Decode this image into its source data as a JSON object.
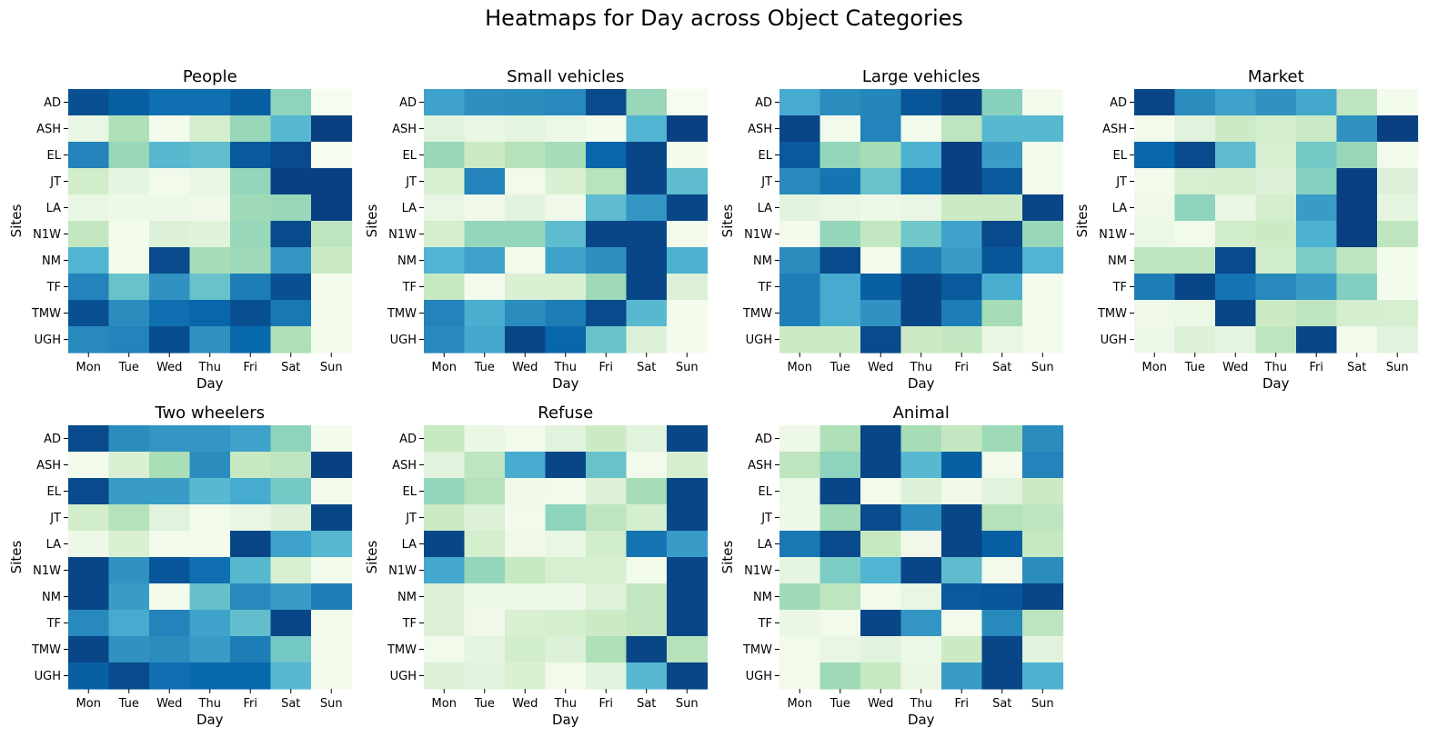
{
  "figure": {
    "title": "Heatmaps for Day across Object Categories"
  },
  "colormap": {
    "name": "GnBu",
    "stops": [
      "#f7fcf0",
      "#e0f3db",
      "#ccebc5",
      "#a8ddb5",
      "#7bccc4",
      "#4eb3d3",
      "#2b8cbe",
      "#0868ac",
      "#084081"
    ]
  },
  "chart_data": [
    {
      "type": "heatmap",
      "title": "People",
      "xlabel": "Day",
      "ylabel": "Sites",
      "x": [
        "Mon",
        "Tue",
        "Wed",
        "Thu",
        "Fri",
        "Sat",
        "Sun"
      ],
      "y": [
        "AD",
        "ASH",
        "EL",
        "JT",
        "LA",
        "N1W",
        "NM",
        "TF",
        "TMW",
        "UGH"
      ],
      "values": [
        [
          0.95,
          0.9,
          0.85,
          0.85,
          0.9,
          0.45,
          0.0
        ],
        [
          0.08,
          0.35,
          0.02,
          0.2,
          0.42,
          0.6,
          1.0
        ],
        [
          0.78,
          0.42,
          0.6,
          0.57,
          0.92,
          0.97,
          0.0
        ],
        [
          0.22,
          0.1,
          0.03,
          0.08,
          0.43,
          1.0,
          1.0
        ],
        [
          0.07,
          0.05,
          0.05,
          0.04,
          0.4,
          0.42,
          1.0
        ],
        [
          0.28,
          0.02,
          0.15,
          0.13,
          0.42,
          0.97,
          0.3
        ],
        [
          0.62,
          0.02,
          0.97,
          0.38,
          0.4,
          0.72,
          0.25
        ],
        [
          0.78,
          0.55,
          0.73,
          0.55,
          0.8,
          0.95,
          0.02
        ],
        [
          0.95,
          0.75,
          0.85,
          0.88,
          0.95,
          0.82,
          0.02
        ],
        [
          0.76,
          0.78,
          0.96,
          0.73,
          0.87,
          0.35,
          0.02
        ]
      ]
    },
    {
      "type": "heatmap",
      "title": "Small vehicles",
      "xlabel": "Day",
      "ylabel": "Sites",
      "x": [
        "Mon",
        "Tue",
        "Wed",
        "Thu",
        "Fri",
        "Sat",
        "Sun"
      ],
      "y": [
        "AD",
        "ASH",
        "EL",
        "JT",
        "LA",
        "N1W",
        "NM",
        "TF",
        "TMW",
        "UGH"
      ],
      "values": [
        [
          0.68,
          0.74,
          0.75,
          0.76,
          0.97,
          0.42,
          0.0
        ],
        [
          0.12,
          0.08,
          0.1,
          0.06,
          0.02,
          0.62,
          1.0
        ],
        [
          0.42,
          0.25,
          0.33,
          0.38,
          0.88,
          0.98,
          0.02
        ],
        [
          0.17,
          0.78,
          0.03,
          0.17,
          0.32,
          0.98,
          0.58
        ],
        [
          0.08,
          0.04,
          0.11,
          0.04,
          0.58,
          0.72,
          0.98
        ],
        [
          0.2,
          0.43,
          0.43,
          0.58,
          0.98,
          0.98,
          0.03
        ],
        [
          0.62,
          0.68,
          0.03,
          0.68,
          0.74,
          0.98,
          0.63
        ],
        [
          0.27,
          0.03,
          0.17,
          0.17,
          0.4,
          0.98,
          0.15
        ],
        [
          0.78,
          0.64,
          0.75,
          0.8,
          0.97,
          0.6,
          0.02
        ],
        [
          0.76,
          0.66,
          0.98,
          0.88,
          0.55,
          0.15,
          0.02
        ]
      ]
    },
    {
      "type": "heatmap",
      "title": "Large vehicles",
      "xlabel": "Day",
      "ylabel": "Sites",
      "x": [
        "Mon",
        "Tue",
        "Wed",
        "Thu",
        "Fri",
        "Sat",
        "Sun"
      ],
      "y": [
        "AD",
        "ASH",
        "EL",
        "JT",
        "LA",
        "N1W",
        "NM",
        "TF",
        "TMW",
        "UGH"
      ],
      "values": [
        [
          0.65,
          0.75,
          0.77,
          0.93,
          0.99,
          0.46,
          0.02
        ],
        [
          0.98,
          0.03,
          0.78,
          0.03,
          0.3,
          0.6,
          0.6
        ],
        [
          0.92,
          0.43,
          0.38,
          0.63,
          1.0,
          0.7,
          0.02
        ],
        [
          0.76,
          0.83,
          0.55,
          0.85,
          1.0,
          0.92,
          0.02
        ],
        [
          0.12,
          0.08,
          0.05,
          0.08,
          0.25,
          0.25,
          0.98
        ],
        [
          0.03,
          0.43,
          0.28,
          0.53,
          0.68,
          0.97,
          0.42
        ],
        [
          0.75,
          0.97,
          0.02,
          0.8,
          0.7,
          0.93,
          0.62
        ],
        [
          0.8,
          0.65,
          0.9,
          0.98,
          0.92,
          0.64,
          0.02
        ],
        [
          0.8,
          0.65,
          0.73,
          0.98,
          0.8,
          0.38,
          0.02
        ],
        [
          0.25,
          0.25,
          0.97,
          0.25,
          0.28,
          0.08,
          0.02
        ]
      ]
    },
    {
      "type": "heatmap",
      "title": "Market",
      "xlabel": "Day",
      "ylabel": "Sites",
      "x": [
        "Mon",
        "Tue",
        "Wed",
        "Thu",
        "Fri",
        "Sat",
        "Sun"
      ],
      "y": [
        "AD",
        "ASH",
        "EL",
        "JT",
        "LA",
        "N1W",
        "NM",
        "TF",
        "TMW",
        "UGH"
      ],
      "values": [
        [
          0.98,
          0.75,
          0.68,
          0.73,
          0.66,
          0.3,
          0.02
        ],
        [
          0.03,
          0.12,
          0.25,
          0.2,
          0.26,
          0.73,
          1.0
        ],
        [
          0.88,
          0.97,
          0.58,
          0.18,
          0.52,
          0.42,
          0.03
        ],
        [
          0.03,
          0.18,
          0.2,
          0.15,
          0.47,
          1.0,
          0.15
        ],
        [
          0.04,
          0.45,
          0.08,
          0.2,
          0.7,
          1.0,
          0.1
        ],
        [
          0.06,
          0.03,
          0.22,
          0.25,
          0.63,
          1.0,
          0.3
        ],
        [
          0.3,
          0.3,
          0.97,
          0.22,
          0.5,
          0.3,
          0.02
        ],
        [
          0.8,
          0.98,
          0.83,
          0.76,
          0.7,
          0.48,
          0.02
        ],
        [
          0.04,
          0.06,
          0.98,
          0.25,
          0.3,
          0.2,
          0.18
        ],
        [
          0.05,
          0.15,
          0.1,
          0.3,
          0.98,
          0.03,
          0.12
        ]
      ]
    },
    {
      "type": "heatmap",
      "title": "Two wheelers",
      "xlabel": "Day",
      "ylabel": "Sites",
      "x": [
        "Mon",
        "Tue",
        "Wed",
        "Thu",
        "Fri",
        "Sat",
        "Sun"
      ],
      "y": [
        "AD",
        "ASH",
        "EL",
        "JT",
        "LA",
        "N1W",
        "NM",
        "TF",
        "TMW",
        "UGH"
      ],
      "values": [
        [
          0.97,
          0.75,
          0.72,
          0.72,
          0.68,
          0.45,
          0.02
        ],
        [
          0.02,
          0.17,
          0.37,
          0.75,
          0.27,
          0.3,
          1.0
        ],
        [
          0.97,
          0.7,
          0.7,
          0.6,
          0.65,
          0.52,
          0.02
        ],
        [
          0.22,
          0.33,
          0.12,
          0.03,
          0.08,
          0.15,
          0.98
        ],
        [
          0.05,
          0.17,
          0.03,
          0.03,
          0.98,
          0.68,
          0.6
        ],
        [
          0.98,
          0.73,
          0.93,
          0.85,
          0.6,
          0.18,
          0.02
        ],
        [
          0.98,
          0.7,
          0.02,
          0.56,
          0.76,
          0.7,
          0.8
        ],
        [
          0.76,
          0.65,
          0.78,
          0.68,
          0.57,
          0.98,
          0.02
        ],
        [
          0.98,
          0.73,
          0.75,
          0.7,
          0.8,
          0.52,
          0.02
        ],
        [
          0.9,
          0.97,
          0.85,
          0.87,
          0.87,
          0.6,
          0.02
        ]
      ]
    },
    {
      "type": "heatmap",
      "title": "Refuse",
      "xlabel": "Day",
      "ylabel": "Sites",
      "x": [
        "Mon",
        "Tue",
        "Wed",
        "Thu",
        "Fri",
        "Sat",
        "Sun"
      ],
      "y": [
        "AD",
        "ASH",
        "EL",
        "JT",
        "LA",
        "N1W",
        "NM",
        "TF",
        "TMW",
        "UGH"
      ],
      "values": [
        [
          0.27,
          0.07,
          0.03,
          0.12,
          0.25,
          0.12,
          0.98
        ],
        [
          0.12,
          0.3,
          0.65,
          0.98,
          0.55,
          0.03,
          0.2
        ],
        [
          0.43,
          0.33,
          0.04,
          0.03,
          0.15,
          0.38,
          0.98
        ],
        [
          0.25,
          0.15,
          0.03,
          0.45,
          0.3,
          0.2,
          0.98
        ],
        [
          0.98,
          0.2,
          0.04,
          0.08,
          0.22,
          0.83,
          0.7
        ],
        [
          0.66,
          0.43,
          0.27,
          0.18,
          0.18,
          0.03,
          0.98
        ],
        [
          0.15,
          0.05,
          0.05,
          0.05,
          0.14,
          0.28,
          0.98
        ],
        [
          0.15,
          0.04,
          0.17,
          0.2,
          0.25,
          0.28,
          0.98
        ],
        [
          0.03,
          0.1,
          0.22,
          0.15,
          0.35,
          0.98,
          0.33
        ],
        [
          0.15,
          0.12,
          0.17,
          0.03,
          0.12,
          0.6,
          0.98
        ]
      ]
    },
    {
      "type": "heatmap",
      "title": "Animal",
      "xlabel": "Day",
      "ylabel": "Sites",
      "x": [
        "Mon",
        "Tue",
        "Wed",
        "Thu",
        "Fri",
        "Sat",
        "Sun"
      ],
      "y": [
        "AD",
        "ASH",
        "EL",
        "JT",
        "LA",
        "N1W",
        "NM",
        "TF",
        "TMW",
        "UGH"
      ],
      "values": [
        [
          0.05,
          0.35,
          0.98,
          0.38,
          0.28,
          0.4,
          0.75
        ],
        [
          0.3,
          0.45,
          0.98,
          0.6,
          0.9,
          0.03,
          0.78
        ],
        [
          0.06,
          0.98,
          0.03,
          0.15,
          0.04,
          0.12,
          0.25
        ],
        [
          0.05,
          0.4,
          0.97,
          0.75,
          0.98,
          0.33,
          0.3
        ],
        [
          0.82,
          0.97,
          0.27,
          0.04,
          0.98,
          0.9,
          0.27
        ],
        [
          0.1,
          0.5,
          0.62,
          0.98,
          0.58,
          0.03,
          0.75
        ],
        [
          0.4,
          0.3,
          0.03,
          0.08,
          0.92,
          0.93,
          0.98
        ],
        [
          0.07,
          0.03,
          0.98,
          0.72,
          0.03,
          0.76,
          0.3
        ],
        [
          0.03,
          0.08,
          0.12,
          0.06,
          0.25,
          0.98,
          0.12
        ],
        [
          0.03,
          0.4,
          0.27,
          0.08,
          0.7,
          0.98,
          0.63
        ]
      ]
    }
  ]
}
